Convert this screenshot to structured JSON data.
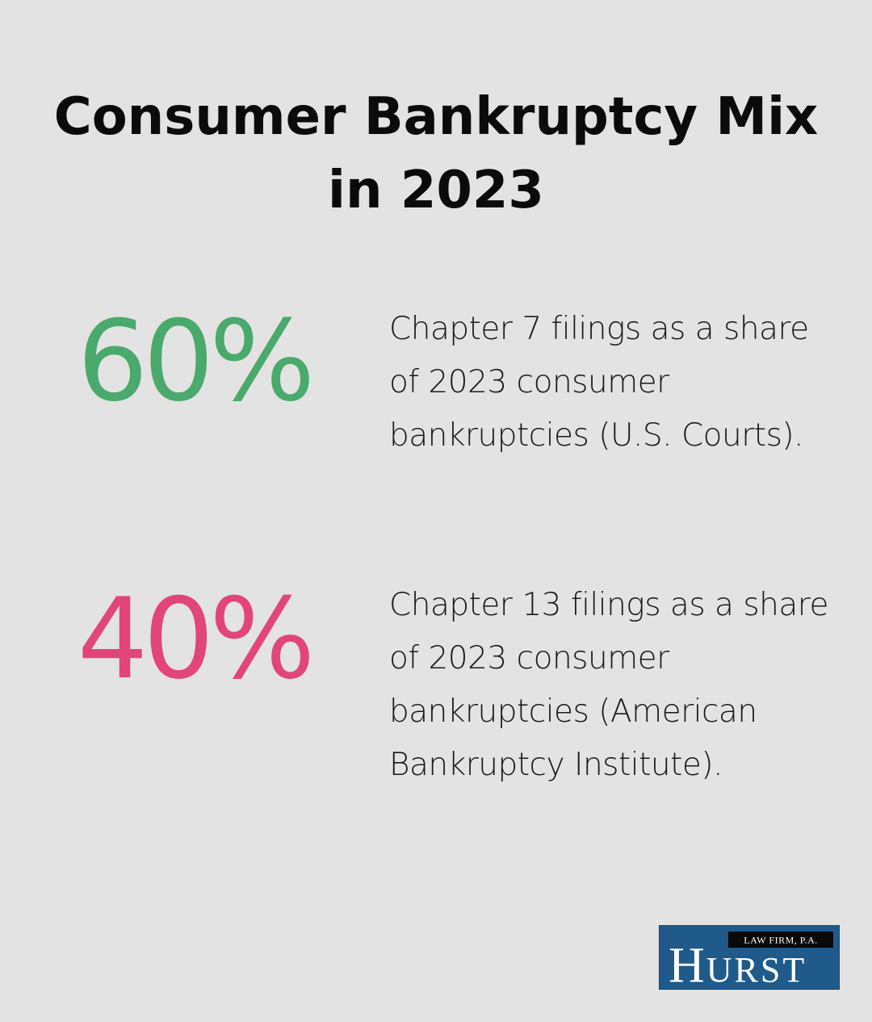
{
  "title": {
    "line1": "Consumer Bankruptcy Mix",
    "line2": "in 2023"
  },
  "stats": [
    {
      "value": "60%",
      "color": "#4aa96c",
      "description": "Chapter 7 filings as a share of 2023 consumer bankruptcies (U.S. Courts)."
    },
    {
      "value": "40%",
      "color": "#e2457a",
      "description": "Chapter 13 filings as a share of 2023 consumer bankruptcies (American Bankruptcy Institute)."
    }
  ],
  "logo": {
    "tagline": "LAW FIRM, P.A.",
    "name": "HURST",
    "background_color": "#1f5a8a"
  }
}
